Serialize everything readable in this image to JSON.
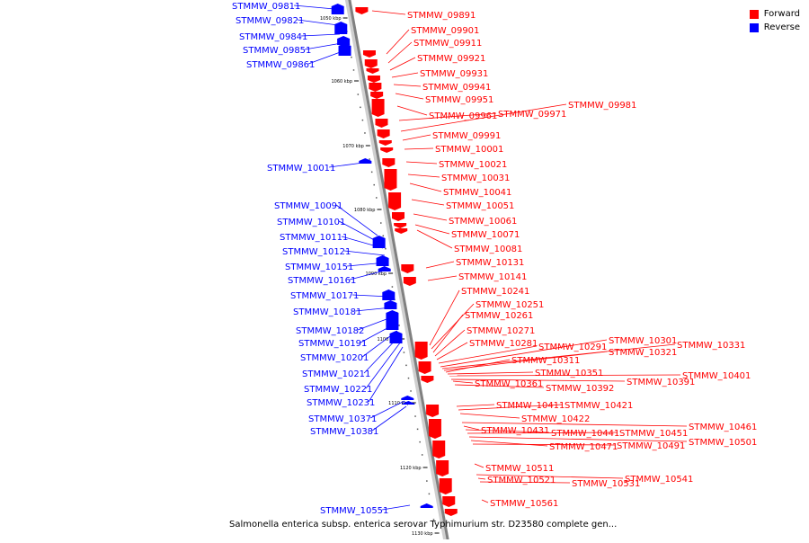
{
  "colors": {
    "forward": "#ff0000",
    "reverse": "#0000ff",
    "axis": "#808080",
    "tick": "#000000"
  },
  "legend": {
    "forward_label": "Forward",
    "reverse_label": "Reverse"
  },
  "caption": "Salmonella enterica subsp. enterica serovar Typhimurium str. D23580 complete gen...",
  "region": {
    "start_kbp": 1050,
    "end_kbp": 1130
  },
  "ticks": [
    "1050 kbp",
    "1060 kbp",
    "1070 kbp",
    "1080 kbp",
    "1090 kbp",
    "1100 kbp",
    "1110 kbp",
    "1120 kbp",
    "1130 kbp"
  ],
  "chart_data": {
    "type": "table",
    "reverse_genes": [
      "STMMW_09811",
      "STMMW_09821",
      "STMMW_09841",
      "STMMW_09851",
      "STMMW_09861",
      "STMMW_10011",
      "STMMW_10091",
      "STMMW_10101",
      "STMMW_10111",
      "STMMW_10121",
      "STMMW_10151",
      "STMMW_10161",
      "STMMW_10171",
      "STMMW_10181",
      "STMMW_10182",
      "STMMW_10191",
      "STMMW_10201",
      "STMMW_10211",
      "STMMW_10221",
      "STMMW_10231",
      "STMMW_10371",
      "STMMW_10381",
      "STMMW_10551"
    ],
    "forward_genes": [
      "STMMW_09891",
      "STMMW_09901",
      "STMMW_09911",
      "STMMW_09921",
      "STMMW_09931",
      "STMMW_09941",
      "STMMW_09951",
      "STMMW_09961",
      "STMMW_09971",
      "STMMW_09981",
      "STMMW_09991",
      "STMMW_10001",
      "STMMW_10021",
      "STMMW_10031",
      "STMMW_10041",
      "STMMW_10051",
      "STMMW_10061",
      "STMMW_10071",
      "STMMW_10081",
      "STMMW_10131",
      "STMMW_10141",
      "STMMW_10241",
      "STMMW_10251",
      "STMMW_10261",
      "STMMW_10271",
      "STMMW_10281",
      "STMMW_10291",
      "STMMW_10301",
      "STMMW_10331",
      "STMMW_10321",
      "STMMW_10311",
      "STMMW_10351",
      "STMMW_10401",
      "STMMW_10391",
      "STMMW_10361",
      "STMMW_10392",
      "STMMW_10411",
      "STMMW_10421",
      "STMMW_10422",
      "STMMW_10461",
      "STMMW_10431",
      "STMMW_10441",
      "STMMW_10451",
      "STMMW_10501",
      "STMMW_10471",
      "STMMW_10491",
      "STMMW_10511",
      "STMMW_10541",
      "STMMW_10521",
      "STMMW_10531",
      "STMMW_10561"
    ]
  }
}
